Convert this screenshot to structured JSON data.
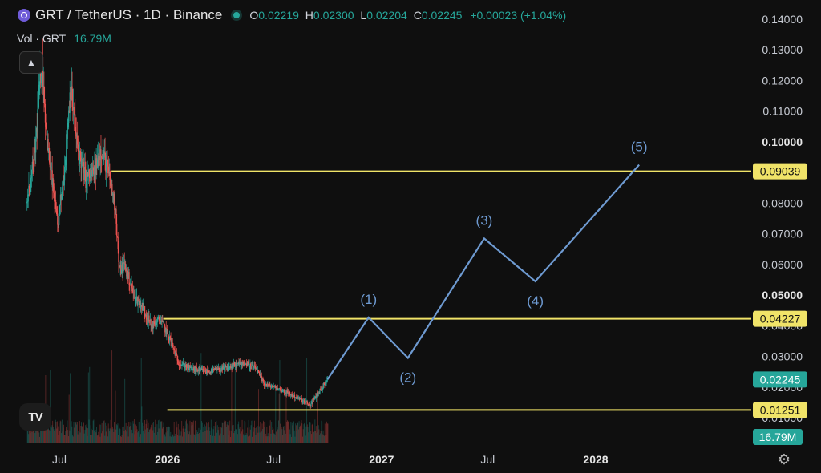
{
  "header": {
    "title": "GRT / TetherUS · 1D · Binance",
    "ohlc": [
      {
        "key": "O",
        "value": "0.02219"
      },
      {
        "key": "H",
        "value": "0.02300"
      },
      {
        "key": "L",
        "value": "0.02204"
      },
      {
        "key": "C",
        "value": "0.02245"
      }
    ],
    "change": "+0.00023 (+1.04%)"
  },
  "volume": {
    "label": "Vol · GRT",
    "value": "16.79M"
  },
  "colors": {
    "background": "#0f0f0f",
    "up": "#26a69a",
    "down": "#ef5350",
    "level_line": "#f0e368",
    "projection": "#6e9ad1",
    "badge_green": "#26a69a"
  },
  "chart_data": {
    "type": "candlestick",
    "symbol": "GRT / TetherUS",
    "interval": "1D",
    "exchange": "Binance",
    "y_axis": {
      "min": 0.0,
      "max": 0.145,
      "ticks": [
        "0.14000",
        "0.13000",
        "0.12000",
        "0.11000",
        "0.10000",
        "0.09000",
        "0.08000",
        "0.07000",
        "0.06000",
        "0.05000",
        "0.04000",
        "0.03000",
        "0.02000",
        "0.01000"
      ],
      "bold_ticks": [
        "0.10000",
        "0.05000"
      ]
    },
    "x_axis": {
      "labels": [
        {
          "text": "Jul",
          "date": "2025-07-01",
          "bold": false
        },
        {
          "text": "2026",
          "date": "2026-01-01",
          "bold": true
        },
        {
          "text": "Jul",
          "date": "2026-07-01",
          "bold": false
        },
        {
          "text": "2027",
          "date": "2027-01-01",
          "bold": true
        },
        {
          "text": "Jul",
          "date": "2027-07-01",
          "bold": false
        },
        {
          "text": "2028",
          "date": "2028-01-01",
          "bold": true
        }
      ]
    },
    "price_path": [
      {
        "date": "2025-05-07",
        "price": 0.08
      },
      {
        "date": "2025-05-20",
        "price": 0.095
      },
      {
        "date": "2025-06-01",
        "price": 0.128
      },
      {
        "date": "2025-06-10",
        "price": 0.1
      },
      {
        "date": "2025-06-20",
        "price": 0.085
      },
      {
        "date": "2025-06-28",
        "price": 0.072
      },
      {
        "date": "2025-07-10",
        "price": 0.092
      },
      {
        "date": "2025-07-20",
        "price": 0.118
      },
      {
        "date": "2025-08-01",
        "price": 0.098
      },
      {
        "date": "2025-08-15",
        "price": 0.088
      },
      {
        "date": "2025-08-30",
        "price": 0.09
      },
      {
        "date": "2025-09-10",
        "price": 0.098
      },
      {
        "date": "2025-09-20",
        "price": 0.092
      },
      {
        "date": "2025-10-05",
        "price": 0.078
      },
      {
        "date": "2025-10-11",
        "price": 0.058
      },
      {
        "date": "2025-10-20",
        "price": 0.06
      },
      {
        "date": "2025-11-05",
        "price": 0.05
      },
      {
        "date": "2025-11-20",
        "price": 0.046
      },
      {
        "date": "2025-12-05",
        "price": 0.04
      },
      {
        "date": "2025-12-20",
        "price": 0.042
      },
      {
        "date": "2026-01-05",
        "price": 0.036
      },
      {
        "date": "2026-01-20",
        "price": 0.028
      },
      {
        "date": "2026-02-10",
        "price": 0.026
      },
      {
        "date": "2026-03-10",
        "price": 0.025
      },
      {
        "date": "2026-04-10",
        "price": 0.026
      },
      {
        "date": "2026-05-10",
        "price": 0.028
      },
      {
        "date": "2026-06-01",
        "price": 0.026
      },
      {
        "date": "2026-06-15",
        "price": 0.021
      },
      {
        "date": "2026-07-15",
        "price": 0.019
      },
      {
        "date": "2026-08-15",
        "price": 0.016
      },
      {
        "date": "2026-09-01",
        "price": 0.014
      },
      {
        "date": "2026-09-15",
        "price": 0.018
      },
      {
        "date": "2026-10-01",
        "price": 0.02245
      }
    ],
    "horizontal_levels": [
      {
        "price": 0.09039,
        "label": "0.09039",
        "from_date": "2025-09-28"
      },
      {
        "price": 0.04227,
        "label": "0.04227",
        "from_date": "2025-12-25"
      },
      {
        "price": 0.01251,
        "label": "0.01251",
        "from_date": "2026-01-01"
      }
    ],
    "last_price": {
      "price": 0.02245,
      "label": "0.02245"
    },
    "volume_badge": "16.79M",
    "projection": {
      "points": [
        {
          "date": "2026-10-01",
          "price": 0.0225
        },
        {
          "date": "2026-12-10",
          "price": 0.0427
        },
        {
          "date": "2027-02-15",
          "price": 0.0295
        },
        {
          "date": "2027-06-25",
          "price": 0.0685
        },
        {
          "date": "2027-09-20",
          "price": 0.0545
        },
        {
          "date": "2028-03-15",
          "price": 0.0925
        }
      ],
      "labels": [
        {
          "text": "(1)",
          "date": "2026-12-10",
          "price": 0.0427,
          "pos": "above"
        },
        {
          "text": "(2)",
          "date": "2027-02-15",
          "price": 0.0295,
          "pos": "below"
        },
        {
          "text": "(3)",
          "date": "2027-06-25",
          "price": 0.0685,
          "pos": "above"
        },
        {
          "text": "(4)",
          "date": "2027-09-20",
          "price": 0.0545,
          "pos": "below"
        },
        {
          "text": "(5)",
          "date": "2028-03-15",
          "price": 0.0925,
          "pos": "above"
        }
      ]
    },
    "grid": false
  }
}
